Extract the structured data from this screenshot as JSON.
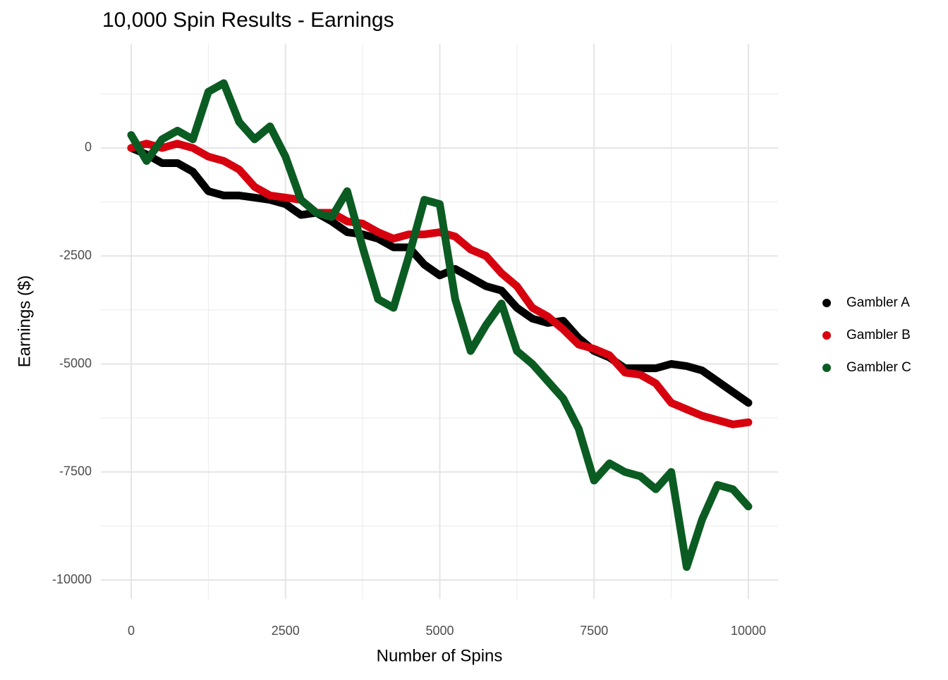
{
  "chart_data": {
    "type": "line",
    "title": "10,000 Spin Results - Earnings",
    "x_label": "Number of Spins",
    "y_label": "Earnings ($)",
    "x": [
      0,
      250,
      500,
      750,
      1000,
      1250,
      1500,
      1750,
      2000,
      2250,
      2500,
      2750,
      3000,
      3250,
      3500,
      3750,
      4000,
      4250,
      4500,
      4750,
      5000,
      5250,
      5500,
      5750,
      6000,
      6250,
      6500,
      6750,
      7000,
      7250,
      7500,
      7750,
      8000,
      8250,
      8500,
      8750,
      9000,
      9250,
      9500,
      9750,
      10000
    ],
    "series": [
      {
        "name": "Gambler A",
        "color": "#000000",
        "values": [
          0,
          -150,
          -350,
          -350,
          -550,
          -1000,
          -1100,
          -1100,
          -1150,
          -1200,
          -1300,
          -1550,
          -1500,
          -1700,
          -1950,
          -2000,
          -2100,
          -2300,
          -2300,
          -2700,
          -2950,
          -2800,
          -3000,
          -3200,
          -3300,
          -3700,
          -3950,
          -4050,
          -4000,
          -4400,
          -4700,
          -4850,
          -5100,
          -5100,
          -5100,
          -5000,
          -5050,
          -5150,
          -5400,
          -5650,
          -5900
        ]
      },
      {
        "name": "Gambler B",
        "color": "#d7000f",
        "values": [
          0,
          100,
          0,
          100,
          0,
          -200,
          -300,
          -500,
          -900,
          -1100,
          -1150,
          -1200,
          -1500,
          -1500,
          -1700,
          -1750,
          -1950,
          -2100,
          -2000,
          -2000,
          -1950,
          -2050,
          -2350,
          -2500,
          -2900,
          -3200,
          -3700,
          -3900,
          -4200,
          -4550,
          -4650,
          -4800,
          -5200,
          -5250,
          -5450,
          -5900,
          -6050,
          -6200,
          -6300,
          -6400,
          -6350
        ]
      },
      {
        "name": "Gambler C",
        "color": "#0b5c22",
        "values": [
          300,
          -300,
          200,
          400,
          200,
          1300,
          1500,
          600,
          200,
          500,
          -200,
          -1200,
          -1500,
          -1600,
          -1000,
          -2300,
          -3500,
          -3700,
          -2500,
          -1200,
          -1300,
          -3500,
          -4700,
          -4100,
          -3600,
          -4700,
          -5000,
          -5400,
          -5800,
          -6500,
          -7700,
          -7300,
          -7500,
          -7600,
          -7900,
          -7500,
          -9700,
          -8600,
          -7800,
          -7900,
          -8300
        ]
      }
    ],
    "xlim": [
      -491,
      10480
    ],
    "ylim": [
      -10440,
      2414
    ],
    "xticks": [
      0,
      2500,
      5000,
      7500,
      10000
    ],
    "yticks": [
      0,
      -2500,
      -5000,
      -7500,
      -10000
    ],
    "xminorticks": [
      1250,
      3750,
      6250,
      8750
    ],
    "yminorticks": [
      1250,
      -1250,
      -3750,
      -6250,
      -8750
    ],
    "grid": true,
    "legend": "right"
  }
}
